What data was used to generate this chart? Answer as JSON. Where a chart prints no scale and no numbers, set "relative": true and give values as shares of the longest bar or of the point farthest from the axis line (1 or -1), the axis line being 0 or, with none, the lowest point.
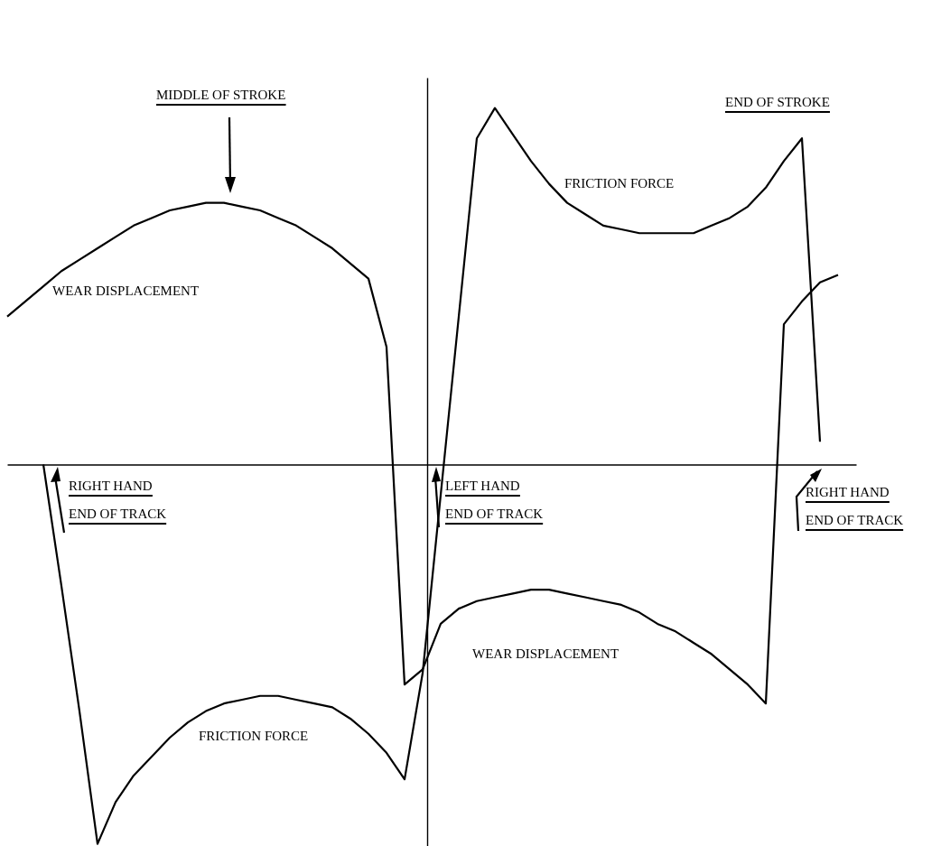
{
  "chart_data": {
    "type": "line",
    "relative": true,
    "categories": [
      null,
      null,
      null,
      null,
      null,
      null,
      null,
      null,
      null,
      null,
      null,
      null,
      null,
      null,
      null,
      null,
      null,
      null,
      null,
      null,
      null,
      null,
      null,
      null,
      null,
      null,
      null,
      null,
      null,
      null,
      null,
      null,
      null,
      null,
      null,
      null,
      null,
      null,
      null,
      null,
      null,
      null,
      null,
      null,
      null,
      null,
      null,
      null
    ],
    "series": [
      {
        "name": "FRICTION FORCE",
        "color": "#000000",
        "values": [
          null,
          null,
          0,
          -0.32,
          -0.65,
          -1.0,
          -0.89,
          -0.82,
          -0.77,
          -0.72,
          -0.68,
          -0.65,
          -0.63,
          -0.62,
          -0.61,
          -0.61,
          -0.62,
          -0.63,
          -0.64,
          -0.67,
          -0.71,
          -0.76,
          -0.83,
          -0.55,
          -0.08,
          0.39,
          0.86,
          0.94,
          0.87,
          0.8,
          0.74,
          0.69,
          0.66,
          0.63,
          0.62,
          0.61,
          0.61,
          0.61,
          0.61,
          0.63,
          0.65,
          0.68,
          0.73,
          0.8,
          0.86,
          0.06,
          null,
          null
        ]
      },
      {
        "name": "WEAR DISPLACEMENT",
        "color": "#000000",
        "values": [
          0.39,
          0.43,
          0.47,
          0.51,
          0.54,
          0.57,
          0.6,
          0.63,
          0.65,
          0.67,
          0.68,
          0.69,
          0.69,
          0.68,
          0.67,
          0.65,
          0.63,
          0.6,
          0.57,
          0.53,
          0.49,
          0.31,
          -0.58,
          -0.54,
          -0.42,
          -0.38,
          -0.36,
          -0.35,
          -0.34,
          -0.33,
          -0.33,
          -0.34,
          -0.35,
          -0.36,
          -0.37,
          -0.39,
          -0.42,
          -0.44,
          -0.47,
          -0.5,
          -0.54,
          -0.58,
          -0.63,
          0.37,
          0.43,
          0.48,
          0.5,
          null
        ]
      }
    ],
    "annotations": [
      "MIDDLE OF STROKE",
      "END OF STROKE",
      "RIGHT HAND\nEND OF TRACK",
      "LEFT HAND\nEND OF TRACK",
      "RIGHT HAND\nEND OF TRACK"
    ]
  }
}
